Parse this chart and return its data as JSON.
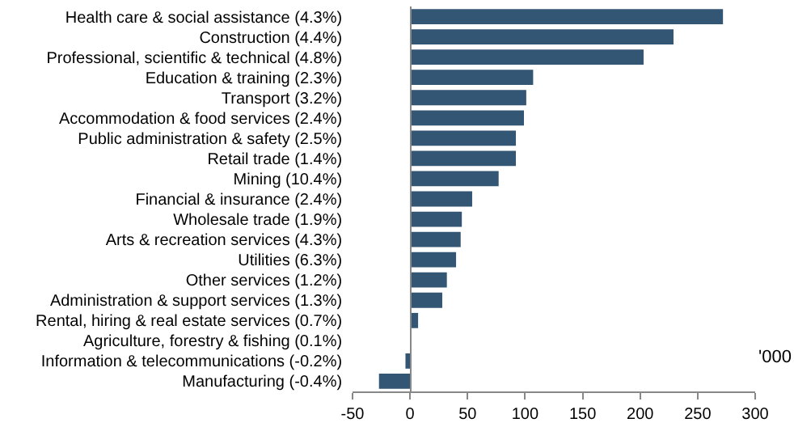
{
  "chart_data": {
    "type": "bar",
    "orientation": "horizontal",
    "categories": [
      "Health care & social assistance (4.3%)",
      "Construction (4.4%)",
      "Professional, scientific & technical (4.8%)",
      "Education & training (2.3%)",
      "Transport (3.2%)",
      "Accommodation & food services (2.4%)",
      "Public administration & safety (2.5%)",
      "Retail trade (1.4%)",
      "Mining (10.4%)",
      "Financial & insurance (2.4%)",
      "Wholesale trade (1.9%)",
      "Arts & recreation services (4.3%)",
      "Utilities (6.3%)",
      "Other services (1.2%)",
      "Administration & support services (1.3%)",
      "Rental, hiring & real estate services (0.7%)",
      "Agriculture, forestry & fishing (0.1%)",
      "Information & telecommunications (-0.2%)",
      "Manufacturing (-0.4%)"
    ],
    "values": [
      272,
      229,
      203,
      107,
      101,
      99,
      92,
      92,
      77,
      54,
      45,
      44,
      40,
      32,
      28,
      7,
      1,
      -4,
      -27
    ],
    "color": "#345675",
    "xlim": [
      -50,
      300
    ],
    "xticks": [
      -50,
      0,
      50,
      100,
      150,
      200,
      250,
      300
    ],
    "annotations": [
      "'000"
    ],
    "legend": false
  }
}
